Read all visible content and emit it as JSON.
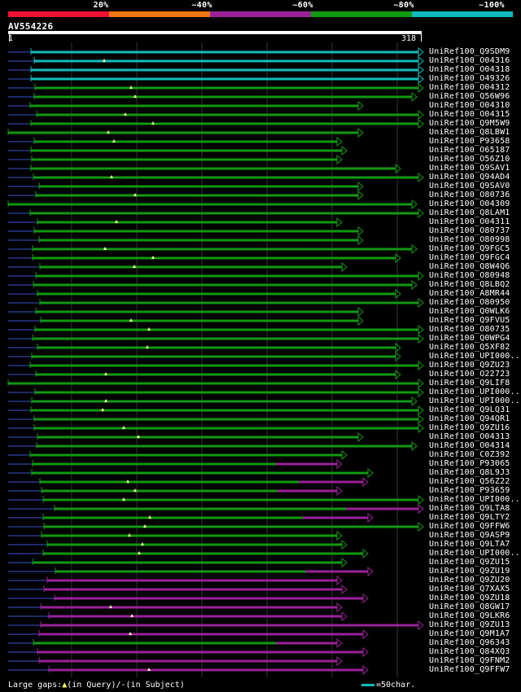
{
  "legend": {
    "labels": [
      "20%",
      "~40%",
      "~60%",
      "~80%",
      "~100%"
    ],
    "colors": [
      "#ee1133",
      "#ee7711",
      "#992299",
      "#119911",
      "#11bbbb"
    ]
  },
  "query": {
    "name": "AV554226",
    "start": "1",
    "end": "318"
  },
  "colors": {
    "identity_100": "#11bbbb",
    "identity_80": "#119911",
    "identity_60": "#992299",
    "unaligned": "#1e2a66",
    "gap_mark": "#ffffaa",
    "background": "#000000",
    "grid": "#333333"
  },
  "hits": [
    {
      "label": "UniRef100_Q9SDM9",
      "color": "cyan"
    },
    {
      "label": "UniRef100_O04316",
      "color": "cyan"
    },
    {
      "label": "UniRef100_O04318",
      "color": "cyan"
    },
    {
      "label": "UniRef100_O49326",
      "color": "cyan"
    },
    {
      "label": "UniRef100_O04312",
      "color": "green"
    },
    {
      "label": "UniRef100_Q56W96",
      "color": "green"
    },
    {
      "label": "UniRef100_O04310",
      "color": "green"
    },
    {
      "label": "UniRef100_O04315",
      "color": "green"
    },
    {
      "label": "UniRef100_Q9M5W9",
      "color": "green"
    },
    {
      "label": "UniRef100_Q8LBW1",
      "color": "green"
    },
    {
      "label": "UniRef100_P93658",
      "color": "green"
    },
    {
      "label": "UniRef100_O65187",
      "color": "green"
    },
    {
      "label": "UniRef100_O56Z10",
      "color": "green"
    },
    {
      "label": "UniRef100_Q9SAV1",
      "color": "green"
    },
    {
      "label": "UniRef100_Q94AD4",
      "color": "green"
    },
    {
      "label": "UniRef100_Q9SAV0",
      "color": "green"
    },
    {
      "label": "UniRef100_O80736",
      "color": "green"
    },
    {
      "label": "UniRef100_O04309",
      "color": "green"
    },
    {
      "label": "UniRef100_Q8LAM1",
      "color": "green"
    },
    {
      "label": "UniRef100_O04311",
      "color": "green"
    },
    {
      "label": "UniRef100_O80737",
      "color": "green"
    },
    {
      "label": "UniRef100_O80998",
      "color": "green"
    },
    {
      "label": "UniRef100_Q9FGC5",
      "color": "green"
    },
    {
      "label": "UniRef100_Q9FGC4",
      "color": "green"
    },
    {
      "label": "UniRef100_Q8W4Q6",
      "color": "green"
    },
    {
      "label": "UniRef100_O80948",
      "color": "green"
    },
    {
      "label": "UniRef100_Q8LBQ2",
      "color": "green"
    },
    {
      "label": "UniRef100_A8MR44",
      "color": "green"
    },
    {
      "label": "UniRef100_O80950",
      "color": "green"
    },
    {
      "label": "UniRef100_Q0WLK6",
      "color": "green"
    },
    {
      "label": "UniRef100_Q9FVU5",
      "color": "green"
    },
    {
      "label": "UniRef100_O80735",
      "color": "green"
    },
    {
      "label": "UniRef100_Q0WPG4",
      "color": "green"
    },
    {
      "label": "UniRef100_Q5XF82",
      "color": "green"
    },
    {
      "label": "UniRef100_UPI000..",
      "color": "green"
    },
    {
      "label": "UniRef100_Q9ZU23",
      "color": "green"
    },
    {
      "label": "UniRef100_O22723",
      "color": "green"
    },
    {
      "label": "UniRef100_Q9LIF8",
      "color": "green"
    },
    {
      "label": "UniRef100_UPI000..",
      "color": "green"
    },
    {
      "label": "UniRef100_UPI000..",
      "color": "green"
    },
    {
      "label": "UniRef100_Q9LQ31",
      "color": "green"
    },
    {
      "label": "UniRef100_Q94QR1",
      "color": "green"
    },
    {
      "label": "UniRef100_Q9ZU16",
      "color": "green"
    },
    {
      "label": "UniRef100_O04313",
      "color": "green"
    },
    {
      "label": "UniRef100_O04314",
      "color": "green"
    },
    {
      "label": "UniRef100_C0Z392",
      "color": "green"
    },
    {
      "label": "UniRef100_P93065",
      "color": "mixed"
    },
    {
      "label": "UniRef100_Q8L9J3",
      "color": "green"
    },
    {
      "label": "UniRef100_Q56Z22",
      "color": "mixed"
    },
    {
      "label": "UniRef100_P93659",
      "color": "mixed"
    },
    {
      "label": "UniRef100_UPI000..",
      "color": "green"
    },
    {
      "label": "UniRef100_Q9LTA8",
      "color": "mixed"
    },
    {
      "label": "UniRef100_Q9LTY2",
      "color": "mixed"
    },
    {
      "label": "UniRef100_Q9FFW6",
      "color": "green"
    },
    {
      "label": "UniRef100_Q9ASP9",
      "color": "green"
    },
    {
      "label": "UniRef100_Q9LTA7",
      "color": "green"
    },
    {
      "label": "UniRef100_UPI000..",
      "color": "green"
    },
    {
      "label": "UniRef100_Q9ZU15",
      "color": "green"
    },
    {
      "label": "UniRef100_Q9ZU19",
      "color": "mixed"
    },
    {
      "label": "UniRef100_Q9ZU20",
      "color": "purple"
    },
    {
      "label": "UniRef100_Q7XAX5",
      "color": "purple"
    },
    {
      "label": "UniRef100_Q9ZU18",
      "color": "purple"
    },
    {
      "label": "UniRef100_Q8GW17",
      "color": "purple"
    },
    {
      "label": "UniRef100_Q9LKR6",
      "color": "purple"
    },
    {
      "label": "UniRef100_Q9ZU13",
      "color": "purple"
    },
    {
      "label": "UniRef100_Q9M1A7",
      "color": "purple"
    },
    {
      "label": "UniRef100_Q96343",
      "color": "mixed"
    },
    {
      "label": "UniRef100_Q84XQ3",
      "color": "purple"
    },
    {
      "label": "UniRef100_Q9FNM2",
      "color": "purple"
    },
    {
      "label": "UniRef100_Q9FFW7",
      "color": "purple"
    }
  ],
  "footer": {
    "gaps_label": "Large gaps:",
    "in_query": "(in Query)/",
    "dash": "-",
    "in_subject": "(in Subject)",
    "scale_label": "=50char."
  }
}
